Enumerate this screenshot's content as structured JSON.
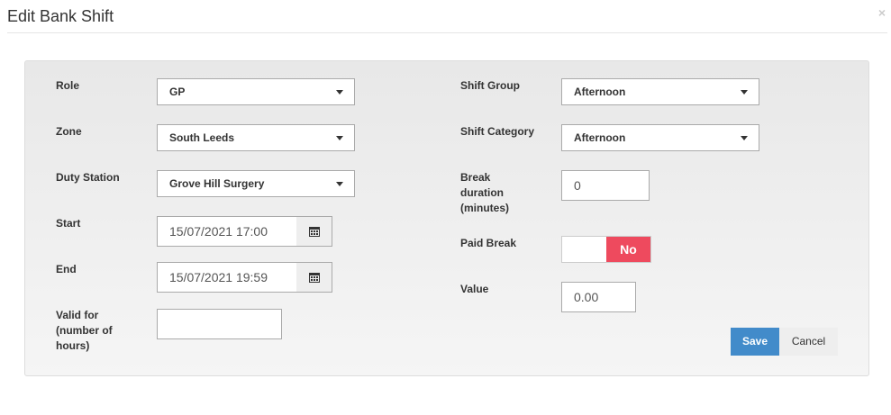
{
  "title": "Edit Bank Shift",
  "close": "×",
  "left": {
    "role_label": "Role",
    "role": "GP",
    "zone_label": "Zone",
    "zone": "South Leeds",
    "duty_label": "Duty Station",
    "duty": "Grove Hill Surgery",
    "start_label": "Start",
    "start": "15/07/2021 17:00",
    "end_label": "End",
    "end": "15/07/2021 19:59",
    "valid_label": "Valid for (number of hours)",
    "valid": ""
  },
  "right": {
    "group_label": "Shift Group",
    "group": "Afternoon",
    "category_label": "Shift Category",
    "category": "Afternoon",
    "break_label": "Break duration (minutes)",
    "break": "0",
    "paid_label": "Paid Break",
    "paid": "No",
    "value_label": "Value",
    "value": "0.00"
  },
  "buttons": {
    "save": "Save",
    "cancel": "Cancel"
  },
  "colors": {
    "save": "#428bca",
    "paid_no": "#ee4a5e"
  }
}
